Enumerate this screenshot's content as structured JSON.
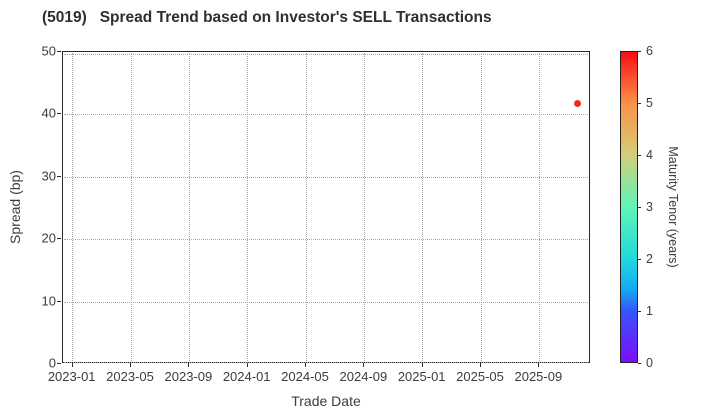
{
  "chart_data": {
    "type": "scatter",
    "title": "(5019)   Spread Trend based on Investor's SELL Transactions",
    "xlabel": "Trade Date",
    "ylabel": "Spread (bp)",
    "x_tick_labels": [
      "2023-01",
      "2023-05",
      "2023-09",
      "2024-01",
      "2024-05",
      "2024-09",
      "2025-01",
      "2025-05",
      "2025-09"
    ],
    "x_tick_interval_months": 4,
    "y_ticks": [
      0,
      10,
      20,
      30,
      40,
      50
    ],
    "ylim": [
      0,
      50
    ],
    "grid": true,
    "grid_style": "dotted",
    "points": [
      {
        "trade_date": "2025-11-20",
        "spread_bp": 41.7,
        "maturity_tenor_years": 6.0,
        "color": "#ee2e1d"
      }
    ],
    "colorbar": {
      "label": "Maturity Tenor (years)",
      "min": 0,
      "max": 6,
      "ticks": [
        0,
        1,
        2,
        3,
        4,
        5,
        6
      ],
      "colormap": "rainbow",
      "stops": [
        {
          "value": 0,
          "color": "#7f0dfe"
        },
        {
          "value": 1,
          "color": "#3356fb"
        },
        {
          "value": 1.4,
          "color": "#15aaf2"
        },
        {
          "value": 2,
          "color": "#20d8dc"
        },
        {
          "value": 3,
          "color": "#5ff5b8"
        },
        {
          "value": 4,
          "color": "#d3ce78"
        },
        {
          "value": 5,
          "color": "#fb9249"
        },
        {
          "value": 6,
          "color": "#f90d13"
        }
      ]
    }
  },
  "colors": {
    "text": "#3c3c3c",
    "frame": "#2a2a2a",
    "grid": "#a6a6a6",
    "background": "#ffffff"
  }
}
